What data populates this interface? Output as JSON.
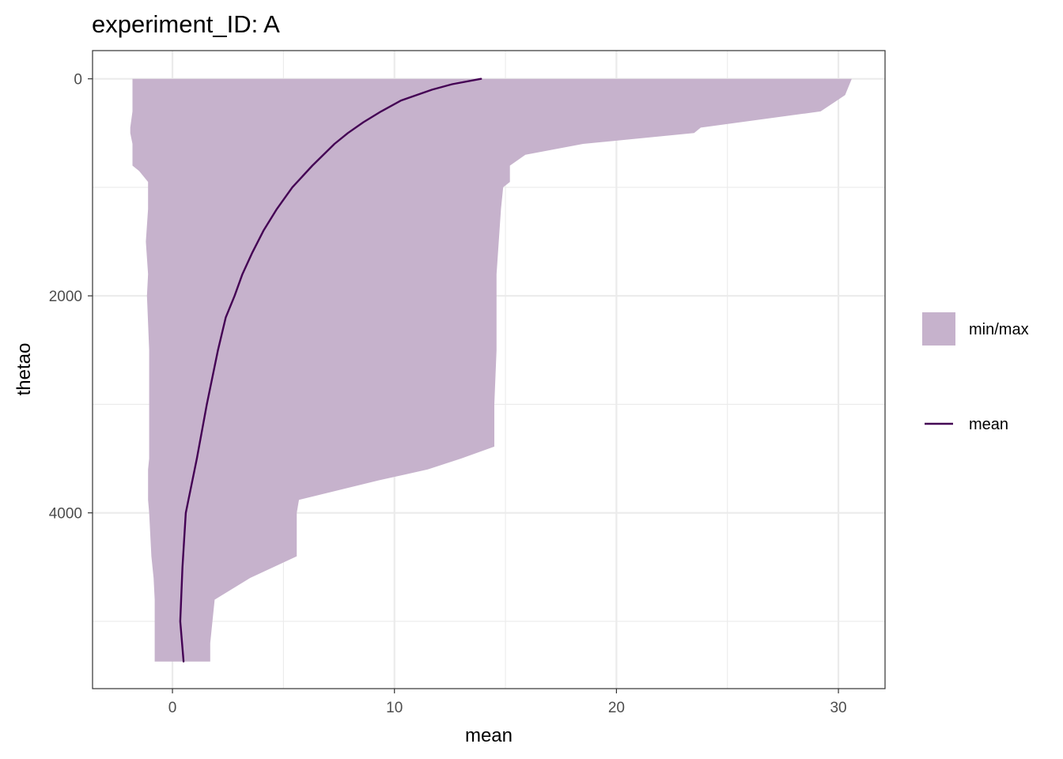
{
  "chart_data": {
    "type": "area",
    "title": "experiment_ID: A",
    "xlabel": "mean",
    "ylabel": "thetao",
    "xlim": [
      -3.6,
      32.1
    ],
    "ylim": [
      5620,
      -260
    ],
    "y_reversed": true,
    "grid": true,
    "x_ticks": [
      0,
      10,
      20,
      30
    ],
    "x_tick_labels": [
      "0",
      "10",
      "20",
      "30"
    ],
    "y_ticks": [
      0,
      2000,
      4000
    ],
    "y_tick_labels": [
      "0",
      "2000",
      "4000"
    ],
    "legend_position": "right",
    "legend": [
      {
        "label": "min/max",
        "kind": "fill"
      },
      {
        "label": "mean",
        "kind": "line"
      }
    ],
    "colors": {
      "band": "#c6b2cc",
      "line": "#440154",
      "grid": "#ebebeb",
      "border": "#333333"
    },
    "series": [
      {
        "name": "min/max",
        "kind": "ribbon",
        "depth": [
          0,
          150,
          300,
          450,
          500,
          600,
          700,
          800,
          850,
          950,
          1000,
          1200,
          1500,
          1800,
          2000,
          2500,
          3000,
          3390,
          3500,
          3600,
          3700,
          3800,
          3880,
          4000,
          4400,
          4600,
          4800,
          4900,
          5000,
          5200,
          5370
        ],
        "min": [
          -1.8,
          -1.8,
          -1.8,
          -1.9,
          -1.9,
          -1.8,
          -1.8,
          -1.8,
          -1.5,
          -1.1,
          -1.1,
          -1.1,
          -1.2,
          -1.1,
          -1.15,
          -1.05,
          -1.05,
          -1.05,
          -1.05,
          -1.1,
          -1.1,
          -1.1,
          -1.1,
          -1.05,
          -0.95,
          -0.85,
          -0.8,
          -0.8,
          -0.8,
          -0.8,
          -0.8
        ],
        "max": [
          30.6,
          30.3,
          29.2,
          23.8,
          23.5,
          18.5,
          15.9,
          15.2,
          15.2,
          15.2,
          14.9,
          14.8,
          14.7,
          14.6,
          14.6,
          14.6,
          14.5,
          14.5,
          13.0,
          11.5,
          9.3,
          7.3,
          5.7,
          5.6,
          5.6,
          3.5,
          1.9,
          1.85,
          1.8,
          1.7,
          1.7
        ]
      },
      {
        "name": "mean",
        "kind": "line",
        "depth": [
          0,
          50,
          100,
          200,
          300,
          400,
          500,
          600,
          800,
          1000,
          1200,
          1400,
          1600,
          1800,
          2000,
          2200,
          2500,
          3000,
          3500,
          4000,
          4500,
          5000,
          5370
        ],
        "values": [
          13.9,
          12.6,
          11.7,
          10.3,
          9.4,
          8.6,
          7.9,
          7.3,
          6.3,
          5.4,
          4.7,
          4.1,
          3.6,
          3.15,
          2.8,
          2.4,
          2.05,
          1.55,
          1.1,
          0.6,
          0.45,
          0.35,
          0.5
        ]
      }
    ]
  }
}
